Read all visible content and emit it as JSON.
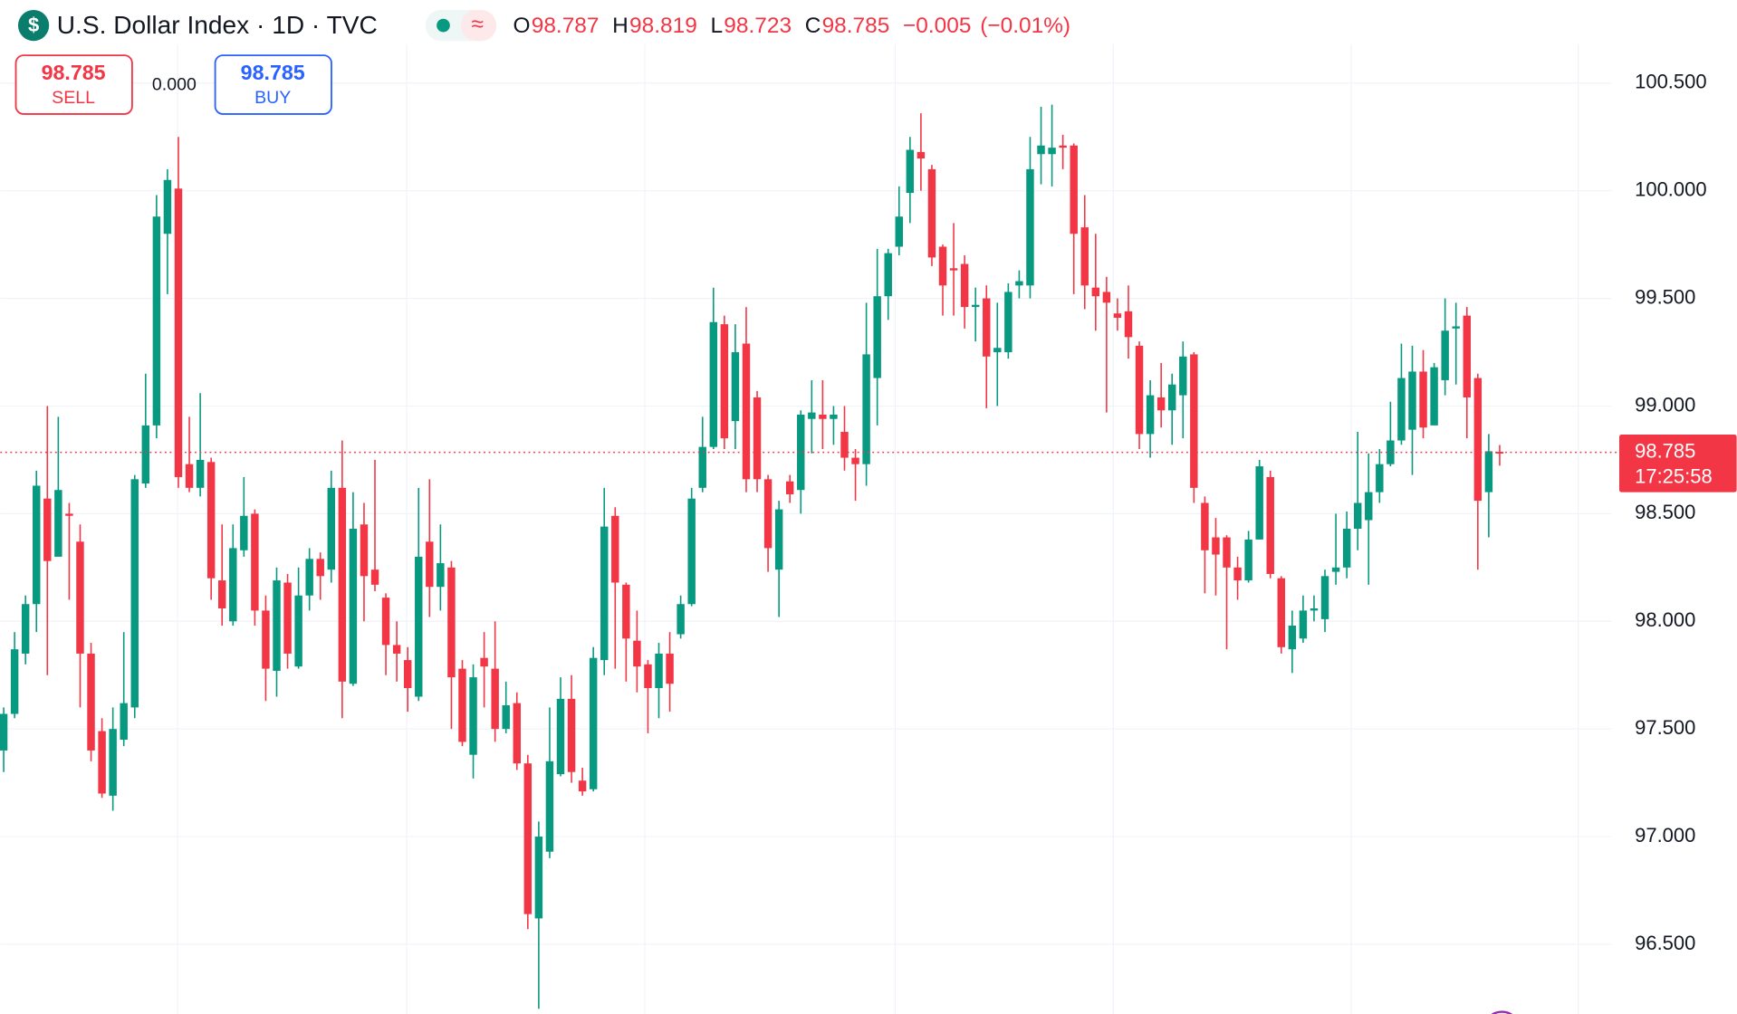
{
  "header": {
    "title": "U.S. Dollar Index · 1D · TVC",
    "ohlc": [
      {
        "label": "O",
        "value": "98.787"
      },
      {
        "label": "H",
        "value": "98.819"
      },
      {
        "label": "L",
        "value": "98.723"
      },
      {
        "label": "C",
        "value": "98.785"
      }
    ],
    "change": "−0.005",
    "change_pct": "(−0.01%)"
  },
  "trade": {
    "sell_price": "98.785",
    "sell_label": "SELL",
    "spread": "0.000",
    "buy_price": "98.785",
    "buy_label": "BUY"
  },
  "chart_data": {
    "type": "candlestick",
    "up_color": "#089981",
    "down_color": "#f23645",
    "ylim": [
      96.176,
      100.886
    ],
    "yticks": [
      {
        "value": 96.5,
        "label": "96.500"
      },
      {
        "value": 97,
        "label": "97.000"
      },
      {
        "value": 97.5,
        "label": "97.500"
      },
      {
        "value": 98,
        "label": "98.000"
      },
      {
        "value": 98.5,
        "label": "98.500"
      },
      {
        "value": 99,
        "label": "99.000"
      },
      {
        "value": 99.5,
        "label": "99.500"
      },
      {
        "value": 100,
        "label": "100.000"
      },
      {
        "value": 100.5,
        "label": "100.500"
      }
    ],
    "grid": true,
    "last_price": 98.785,
    "countdown": "17:25:58",
    "open": [
      97.4,
      97.57,
      97.85,
      98.08,
      98.57,
      98.3,
      98.5,
      98.37,
      97.85,
      97.49,
      97.19,
      97.45,
      97.6,
      98.64,
      98.91,
      99.8,
      100.01,
      98.73,
      98.62,
      98.74,
      98.19,
      98.0,
      98.33,
      98.5,
      98.05,
      97.77,
      98.18,
      97.79,
      98.12,
      98.29,
      98.24,
      98.62,
      97.71,
      98.45,
      98.24,
      98.11,
      97.89,
      97.82,
      97.65,
      98.37,
      98.16,
      98.25,
      97.78,
      97.38,
      97.83,
      97.78,
      97.5,
      97.62,
      97.34,
      96.62,
      96.93,
      97.29,
      97.64,
      97.26,
      97.22,
      97.82,
      98.49,
      98.17,
      97.91,
      97.8,
      97.69,
      97.85,
      97.94,
      98.08,
      98.62,
      98.81,
      99.38,
      98.93,
      99.29,
      99.04,
      98.66,
      98.24,
      98.65,
      98.61,
      98.94,
      98.96,
      98.94,
      98.88,
      98.76,
      98.73,
      99.13,
      99.51,
      99.74,
      99.99,
      100.18,
      100.1,
      99.74,
      99.64,
      99.66,
      99.46,
      99.5,
      99.25,
      99.25,
      99.56,
      99.56,
      100.17,
      100.17,
      100.21,
      100.21,
      99.83,
      99.55,
      99.53,
      99.43,
      99.44,
      99.28,
      98.87,
      99.04,
      98.98,
      99.05,
      99.24,
      98.55,
      98.39,
      98.39,
      98.25,
      98.19,
      98.38,
      98.67,
      98.2,
      97.87,
      97.92,
      98.05,
      98.01,
      98.23,
      98.25,
      98.43,
      98.47,
      98.6,
      98.73,
      98.84,
      98.89,
      99.16,
      98.91,
      99.12,
      99.36,
      99.42,
      99.13,
      98.6,
      98.787
    ],
    "high": [
      97.6,
      97.95,
      98.12,
      98.7,
      99.0,
      98.95,
      98.55,
      98.45,
      97.9,
      97.55,
      97.6,
      97.95,
      98.68,
      99.15,
      99.98,
      100.1,
      100.25,
      98.95,
      99.06,
      98.76,
      98.45,
      98.45,
      98.67,
      98.52,
      98.12,
      98.25,
      98.22,
      98.25,
      98.34,
      98.32,
      98.7,
      98.84,
      98.6,
      98.55,
      98.75,
      98.13,
      98.0,
      97.88,
      98.62,
      98.66,
      98.45,
      98.28,
      97.82,
      97.8,
      97.95,
      98.0,
      97.72,
      97.67,
      97.38,
      97.07,
      97.6,
      97.74,
      97.75,
      97.32,
      97.88,
      98.62,
      98.53,
      98.18,
      98.05,
      97.82,
      97.9,
      97.95,
      98.12,
      98.62,
      98.95,
      99.55,
      99.42,
      99.38,
      99.46,
      99.07,
      98.68,
      98.56,
      98.68,
      98.98,
      99.12,
      99.12,
      99.0,
      99.0,
      98.8,
      99.48,
      99.73,
      99.73,
      100.02,
      100.25,
      100.36,
      100.12,
      99.75,
      99.85,
      99.7,
      99.55,
      99.56,
      99.48,
      99.57,
      99.63,
      100.25,
      100.39,
      100.4,
      100.26,
      100.22,
      99.98,
      99.8,
      99.6,
      99.5,
      99.56,
      99.3,
      99.12,
      99.2,
      99.15,
      99.3,
      99.25,
      98.58,
      98.48,
      98.4,
      98.3,
      98.42,
      98.75,
      98.7,
      98.21,
      98.05,
      98.12,
      98.12,
      98.24,
      98.5,
      98.51,
      98.88,
      98.78,
      98.8,
      99.02,
      99.29,
      99.28,
      99.26,
      99.2,
      99.5,
      99.48,
      99.46,
      99.15,
      98.87,
      98.819
    ],
    "low": [
      97.3,
      97.55,
      97.8,
      97.95,
      97.75,
      98.3,
      98.1,
      97.6,
      97.35,
      97.18,
      97.12,
      97.42,
      97.55,
      98.62,
      98.85,
      99.52,
      98.62,
      98.6,
      98.58,
      98.1,
      97.98,
      97.98,
      98.3,
      97.98,
      97.63,
      97.65,
      97.78,
      97.78,
      98.05,
      98.1,
      98.18,
      97.55,
      97.7,
      98.0,
      98.14,
      97.75,
      97.72,
      97.58,
      97.63,
      98.02,
      98.05,
      97.5,
      97.42,
      97.27,
      97.6,
      97.44,
      97.48,
      97.31,
      96.57,
      96.2,
      96.9,
      97.28,
      97.25,
      97.19,
      97.21,
      97.75,
      97.78,
      97.72,
      97.67,
      97.48,
      97.55,
      97.58,
      97.92,
      98.07,
      98.6,
      98.8,
      98.8,
      98.8,
      98.6,
      98.6,
      98.23,
      98.02,
      98.55,
      98.5,
      98.78,
      98.8,
      98.82,
      98.7,
      98.56,
      98.63,
      98.91,
      99.4,
      99.7,
      99.85,
      100.0,
      99.65,
      99.42,
      99.42,
      99.36,
      99.3,
      98.99,
      99.0,
      99.22,
      99.5,
      99.5,
      100.03,
      100.02,
      100.1,
      99.52,
      99.45,
      99.35,
      98.97,
      99.35,
      99.22,
      98.8,
      98.76,
      98.9,
      98.82,
      98.85,
      98.55,
      98.13,
      98.12,
      97.87,
      98.1,
      98.18,
      98.38,
      98.2,
      97.85,
      97.76,
      97.9,
      98.0,
      97.95,
      98.17,
      98.2,
      98.33,
      98.17,
      98.55,
      98.72,
      98.82,
      98.68,
      98.85,
      98.92,
      99.05,
      99.1,
      98.85,
      98.24,
      98.39,
      98.723
    ],
    "close": [
      97.57,
      97.87,
      98.08,
      98.63,
      98.28,
      98.61,
      98.49,
      97.85,
      97.4,
      97.2,
      97.5,
      97.62,
      98.66,
      98.91,
      99.88,
      100.05,
      98.67,
      98.62,
      98.75,
      98.2,
      98.06,
      98.34,
      98.49,
      98.05,
      97.78,
      98.19,
      97.85,
      98.12,
      98.29,
      98.21,
      98.62,
      97.72,
      98.43,
      98.21,
      98.17,
      97.89,
      97.85,
      97.69,
      98.3,
      98.16,
      98.27,
      97.74,
      97.44,
      97.74,
      97.79,
      97.5,
      97.61,
      97.34,
      96.64,
      97.0,
      97.35,
      97.64,
      97.3,
      97.21,
      97.83,
      98.44,
      98.18,
      97.92,
      97.79,
      97.69,
      97.85,
      97.71,
      98.08,
      98.57,
      98.81,
      99.39,
      98.85,
      99.25,
      98.66,
      98.66,
      98.34,
      98.52,
      98.59,
      98.96,
      98.97,
      98.94,
      98.96,
      98.76,
      98.73,
      99.24,
      99.51,
      99.71,
      99.88,
      100.19,
      100.15,
      99.69,
      99.56,
      99.63,
      99.46,
      99.47,
      99.23,
      99.27,
      99.53,
      99.58,
      100.1,
      100.21,
      100.2,
      100.2,
      99.8,
      99.56,
      99.51,
      99.48,
      99.41,
      99.32,
      98.87,
      99.05,
      98.98,
      99.1,
      99.23,
      98.62,
      98.33,
      98.31,
      98.25,
      98.19,
      98.38,
      98.72,
      98.22,
      97.88,
      97.98,
      98.05,
      98.06,
      98.21,
      98.25,
      98.43,
      98.55,
      98.6,
      98.73,
      98.84,
      99.13,
      99.16,
      98.9,
      99.18,
      99.35,
      99.37,
      99.04,
      98.56,
      98.79,
      98.785
    ]
  }
}
